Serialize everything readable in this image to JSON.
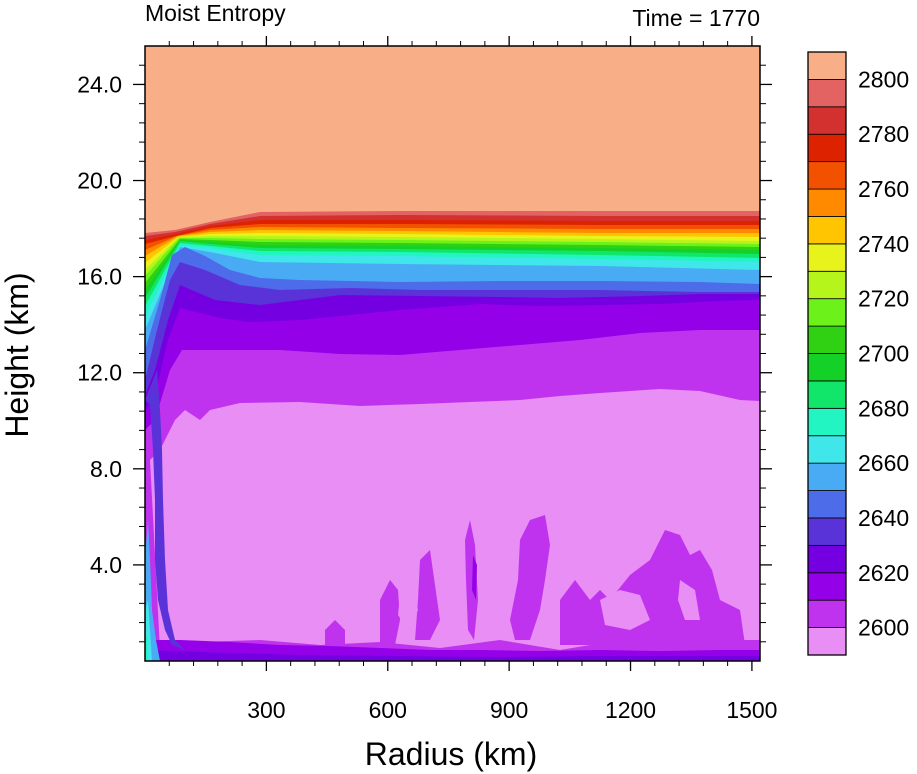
{
  "chart_data": {
    "type": "heatmap",
    "title": "Moist Entropy",
    "subtitle": "Time = 1770",
    "xlabel": "Radius (km)",
    "ylabel": "Height (km)",
    "xlim": [
      0,
      1520
    ],
    "ylim": [
      0,
      25.6
    ],
    "x_ticks": [
      300,
      600,
      900,
      1200,
      1500
    ],
    "x_tick_labels": [
      "300",
      "600",
      "900",
      "1200",
      "1500"
    ],
    "y_ticks": [
      4,
      8,
      12,
      16,
      20,
      24
    ],
    "y_tick_labels": [
      "4.0",
      "8.0",
      "12.0",
      "16.0",
      "20.0",
      "24.0"
    ],
    "colorbar": {
      "levels": [
        2600,
        2610,
        2620,
        2630,
        2640,
        2650,
        2660,
        2670,
        2680,
        2690,
        2700,
        2710,
        2720,
        2730,
        2740,
        2750,
        2760,
        2770,
        2780,
        2790,
        2800
      ],
      "tick_labels": [
        "2600",
        "2620",
        "2640",
        "2660",
        "2680",
        "2700",
        "2720",
        "2740",
        "2760",
        "2780",
        "2800"
      ],
      "colors": [
        "#E88EF5",
        "#C033EE",
        "#9400E8",
        "#7400E2",
        "#5A33D8",
        "#4C6CEA",
        "#4AABF5",
        "#3FE6EA",
        "#22F5C1",
        "#11E66A",
        "#14D128",
        "#2FD112",
        "#6CF21A",
        "#B5F51C",
        "#E8F31C",
        "#FFC500",
        "#FF8A00",
        "#F25200",
        "#DD2200",
        "#D33030",
        "#E36262",
        "#F8AE86"
      ]
    },
    "field_bands": [
      {
        "color": "#F8AE86",
        "value_range": [
          2800,
          2810
        ],
        "region": "stratosphere above ~18.5 km"
      },
      {
        "color": "#D33030",
        "value_range": [
          2780,
          2800
        ],
        "region": "tropopause layer ~18.3 km"
      },
      {
        "color": "#E8F31C",
        "value_range": [
          2720,
          2760
        ],
        "region": "~17.7 km"
      },
      {
        "color": "#14D128",
        "value_range": [
          2680,
          2720
        ],
        "region": "~17.2 km"
      },
      {
        "color": "#4AABF5",
        "value_range": [
          2650,
          2670
        ],
        "region": "~16.5 km"
      },
      {
        "color": "#4C6CEA",
        "value_range": [
          2640,
          2650
        ],
        "region": "~15.8 km"
      },
      {
        "color": "#7400E2",
        "value_range": [
          2620,
          2640
        ],
        "region": "~14.5 km"
      },
      {
        "color": "#C033EE",
        "value_range": [
          2610,
          2620
        ],
        "region": "~12 km"
      },
      {
        "color": "#E88EF5",
        "value_range": [
          2600,
          2610
        ],
        "region": "mid troposphere 1–10.5 km"
      }
    ]
  }
}
